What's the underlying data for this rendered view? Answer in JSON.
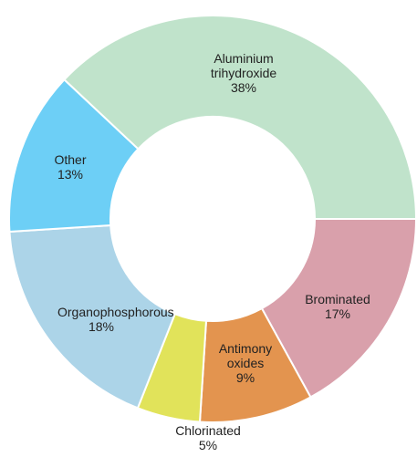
{
  "chart_data": {
    "type": "donut",
    "categories": [
      "Aluminium trihydroxide",
      "Brominated",
      "Antimony oxides",
      "Chlorinated",
      "Organophosphorous",
      "Other"
    ],
    "values": [
      38,
      17,
      9,
      5,
      18,
      13
    ],
    "value_labels": [
      "38%",
      "17%",
      "9%",
      "5%",
      "18%",
      "13%"
    ],
    "colors": [
      "#c0e3cb",
      "#d9a0ab",
      "#e3944f",
      "#e1e35a",
      "#acd4e8",
      "#6dcff6"
    ]
  }
}
